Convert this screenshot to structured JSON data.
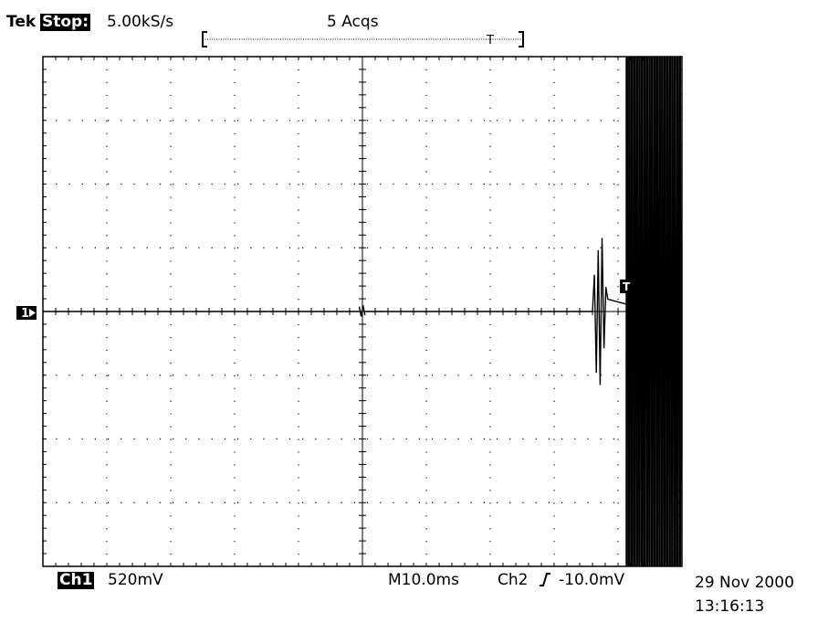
{
  "header": {
    "brand": "Tek",
    "mode": "Stop:",
    "sample_rate": "5.00kS/s",
    "acquisitions": "5 Acqs",
    "record_marker": "T"
  },
  "footer": {
    "channel": "Ch1",
    "volts_per_div": "520mV",
    "timebase": "M10.0ms",
    "trigger_source": "Ch2",
    "trigger_slope_icon": "rising-edge-icon",
    "trigger_level": "-10.0mV",
    "date": "29 Nov 2000",
    "time": "13:16:13"
  },
  "chart_data": {
    "type": "line",
    "title": "",
    "xlabel": "",
    "ylabel": "",
    "x_unit": "ms",
    "y_unit": "V",
    "divisions": {
      "x": 10,
      "y": 8
    },
    "grid": true,
    "xlim": [
      0,
      100
    ],
    "ylim": [
      -2.08,
      2.08
    ],
    "channel_marker": "1",
    "trigger_marker": "T",
    "series": [
      {
        "name": "Ch1",
        "color": "#000000",
        "baseline_v": 0,
        "spike_noise": {
          "x": [
            49.5,
            49.8,
            50.1,
            50.4
          ],
          "y": [
            0.04,
            -0.04,
            0.05,
            -0.03
          ]
        },
        "burst_onset": {
          "x": [
            86.0,
            86.3,
            86.6,
            86.9,
            87.2,
            87.5,
            87.8,
            88.1,
            88.4
          ],
          "y": [
            0,
            0.3,
            -0.5,
            0.5,
            -0.6,
            0.6,
            -0.3,
            0.2,
            0.1
          ]
        },
        "oscillation": {
          "x_start": 91.3,
          "x_end": 100,
          "cycles": 11,
          "amplitude_v": 2.08,
          "clipped": true
        }
      }
    ],
    "trigger_x": 91.3,
    "trigger_y": 0.06
  }
}
